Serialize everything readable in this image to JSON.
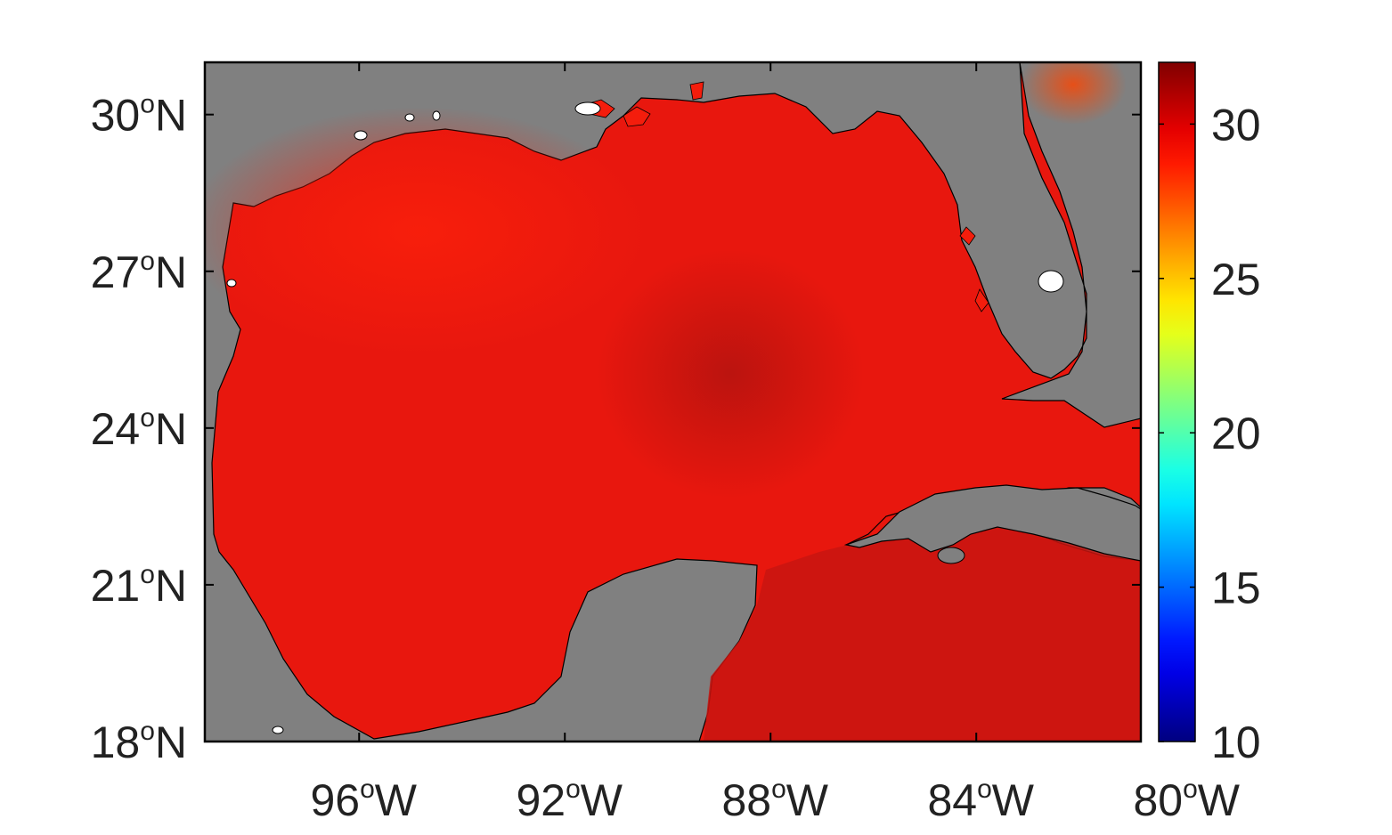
{
  "map": {
    "region": "Gulf of Mexico",
    "colors": {
      "land": "#808080",
      "frame": "#000000",
      "coastline": "#000000",
      "lake": "#ffffff",
      "sea_base": "#e8170e",
      "sea_northwest": "#f41d0c",
      "sea_central_dark": "#c7140e",
      "sea_caribbean": "#c81510"
    },
    "extent": {
      "lon_min": -99,
      "lon_max": -80.8,
      "lat_min": 18,
      "lat_max": 31
    },
    "x_ticks": [
      {
        "value": -96,
        "number": "96",
        "degree": "o",
        "hemisphere": "W"
      },
      {
        "value": -92,
        "number": "92",
        "degree": "o",
        "hemisphere": "W"
      },
      {
        "value": -88,
        "number": "88",
        "degree": "o",
        "hemisphere": "W"
      },
      {
        "value": -84,
        "number": "84",
        "degree": "o",
        "hemisphere": "W"
      },
      {
        "value": -80,
        "number": "80",
        "degree": "o",
        "hemisphere": "W"
      }
    ],
    "y_ticks": [
      {
        "value": 30,
        "number": "30",
        "degree": "o",
        "hemisphere": "N"
      },
      {
        "value": 27,
        "number": "27",
        "degree": "o",
        "hemisphere": "N"
      },
      {
        "value": 24,
        "number": "24",
        "degree": "o",
        "hemisphere": "N"
      },
      {
        "value": 21,
        "number": "21",
        "degree": "o",
        "hemisphere": "N"
      },
      {
        "value": 18,
        "number": "18",
        "degree": "o",
        "hemisphere": "N"
      }
    ]
  },
  "colorbar": {
    "min": 10,
    "max": 32,
    "colormap": "jet",
    "ticks": [
      {
        "value": 30,
        "label": "30"
      },
      {
        "value": 25,
        "label": "25"
      },
      {
        "value": 20,
        "label": "20"
      },
      {
        "value": 15,
        "label": "15"
      },
      {
        "value": 10,
        "label": "10"
      }
    ]
  }
}
